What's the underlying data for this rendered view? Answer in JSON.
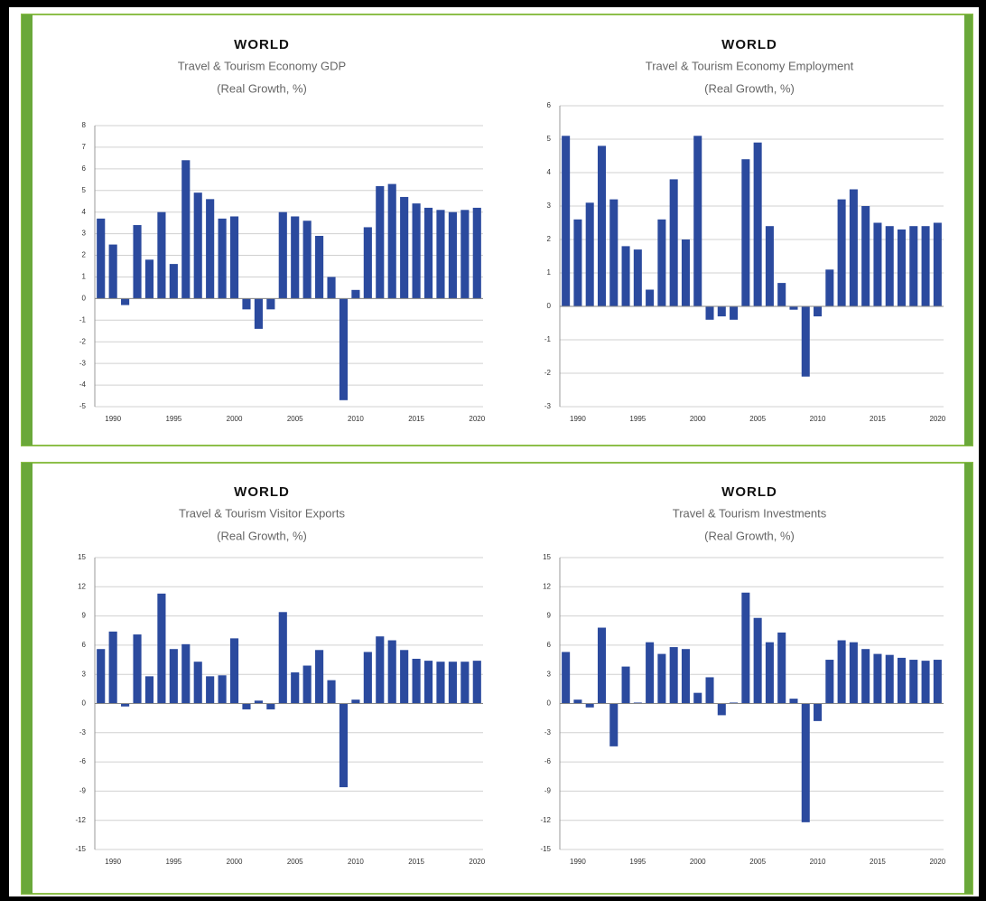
{
  "chart_data": [
    {
      "type": "bar",
      "title": "WORLD",
      "subtitle_lines": [
        "Travel & Tourism Economy GDP",
        "(Real Growth, %)"
      ],
      "categories": [
        null,
        "1990",
        null,
        null,
        null,
        null,
        "1995",
        null,
        null,
        null,
        null,
        "2000",
        null,
        null,
        null,
        null,
        "2005",
        null,
        null,
        null,
        null,
        "2010",
        null,
        null,
        null,
        null,
        "2015",
        null,
        null,
        null,
        null,
        "2020"
      ],
      "values": [
        3.7,
        2.5,
        -0.3,
        3.4,
        1.8,
        4.0,
        1.6,
        6.4,
        4.9,
        4.6,
        3.7,
        3.8,
        -0.5,
        -1.4,
        -0.5,
        4.0,
        3.8,
        3.6,
        2.9,
        1.0,
        -4.7,
        0.4,
        3.3,
        5.2,
        5.3,
        4.7,
        4.4,
        4.2,
        4.1,
        4.0,
        4.1,
        4.2
      ],
      "color": "#2b4a9e",
      "ylim": [
        -5,
        8
      ],
      "yticks": [
        8,
        7,
        6,
        5,
        4,
        3,
        2,
        1,
        0,
        -1,
        -2,
        -3,
        -4,
        -5
      ],
      "grid": true
    },
    {
      "type": "bar",
      "title": "WORLD",
      "subtitle_lines": [
        "Travel & Tourism Economy Employment",
        "(Real Growth, %)"
      ],
      "categories": [
        null,
        "1990",
        null,
        null,
        null,
        null,
        "1995",
        null,
        null,
        null,
        null,
        "2000",
        null,
        null,
        null,
        null,
        "2005",
        null,
        null,
        null,
        null,
        "2010",
        null,
        null,
        null,
        null,
        "2015",
        null,
        null,
        null,
        null,
        "2020"
      ],
      "values": [
        5.1,
        2.6,
        3.1,
        4.8,
        3.2,
        1.8,
        1.7,
        0.5,
        2.6,
        3.8,
        2.0,
        5.1,
        -0.4,
        -0.3,
        -0.4,
        4.4,
        4.9,
        2.4,
        0.7,
        -0.1,
        -2.1,
        -0.3,
        1.1,
        3.2,
        3.5,
        3.0,
        2.5,
        2.4,
        2.3,
        2.4,
        2.4,
        2.5
      ],
      "color": "#2b4a9e",
      "ylim": [
        -3,
        6
      ],
      "yticks": [
        6,
        5,
        4,
        3,
        2,
        1,
        0,
        -1,
        -2,
        -3
      ],
      "grid": true
    },
    {
      "type": "bar",
      "title": "WORLD",
      "subtitle_lines": [
        "Travel & Tourism Visitor Exports",
        "(Real Growth, %)"
      ],
      "categories": [
        null,
        "1990",
        null,
        null,
        null,
        null,
        "1995",
        null,
        null,
        null,
        null,
        "2000",
        null,
        null,
        null,
        null,
        "2005",
        null,
        null,
        null,
        null,
        "2010",
        null,
        null,
        null,
        null,
        "2015",
        null,
        null,
        null,
        null,
        "2020"
      ],
      "values": [
        5.6,
        7.4,
        -0.3,
        7.1,
        2.8,
        11.3,
        5.6,
        6.1,
        4.3,
        2.8,
        2.9,
        6.7,
        -0.6,
        0.3,
        -0.6,
        9.4,
        3.2,
        3.9,
        5.5,
        2.4,
        -8.6,
        0.4,
        5.3,
        6.9,
        6.5,
        5.5,
        4.6,
        4.4,
        4.3,
        4.3,
        4.3,
        4.4
      ],
      "color": "#2b4a9e",
      "ylim": [
        -15,
        15
      ],
      "yticks": [
        15,
        12,
        9,
        6,
        3,
        0,
        -3,
        -6,
        -9,
        -12,
        -15
      ],
      "grid": true
    },
    {
      "type": "bar",
      "title": "WORLD",
      "subtitle_lines": [
        "Travel & Tourism Investments",
        "(Real Growth, %)"
      ],
      "categories": [
        null,
        "1990",
        null,
        null,
        null,
        null,
        "1995",
        null,
        null,
        null,
        null,
        "2000",
        null,
        null,
        null,
        null,
        "2005",
        null,
        null,
        null,
        null,
        "2010",
        null,
        null,
        null,
        null,
        "2015",
        null,
        null,
        null,
        null,
        "2020"
      ],
      "values": [
        5.3,
        0.4,
        -0.4,
        7.8,
        -4.4,
        3.8,
        0.1,
        6.3,
        5.1,
        5.8,
        5.6,
        1.1,
        2.7,
        -1.2,
        0.1,
        11.4,
        8.8,
        6.3,
        7.3,
        0.5,
        -12.2,
        -1.8,
        4.5,
        6.5,
        6.3,
        5.6,
        5.1,
        5.0,
        4.7,
        4.5,
        4.4,
        4.5
      ],
      "color": "#2b4a9e",
      "ylim": [
        -15,
        15
      ],
      "yticks": [
        15,
        12,
        9,
        6,
        3,
        0,
        -3,
        -6,
        -9,
        -12,
        -15
      ],
      "grid": true
    }
  ]
}
